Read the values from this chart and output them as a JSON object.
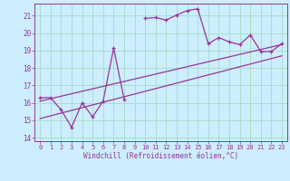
{
  "xlabel": "Windchill (Refroidissement éolien,°C)",
  "background_color": "#cceeff",
  "grid_color": "#aaddcc",
  "line_color": "#993399",
  "xlim": [
    -0.5,
    23.5
  ],
  "ylim": [
    13.8,
    21.7
  ],
  "yticks": [
    14,
    15,
    16,
    17,
    18,
    19,
    20,
    21
  ],
  "xticks": [
    0,
    1,
    2,
    3,
    4,
    5,
    6,
    7,
    8,
    9,
    10,
    11,
    12,
    13,
    14,
    15,
    16,
    17,
    18,
    19,
    20,
    21,
    22,
    23
  ],
  "series_x": [
    0,
    1,
    2,
    3,
    4,
    5,
    6,
    7,
    8,
    9,
    10,
    11,
    12,
    13,
    14,
    15,
    16,
    17,
    18,
    19,
    20,
    21,
    22,
    23
  ],
  "series_y": [
    16.3,
    16.3,
    15.6,
    14.6,
    16.0,
    15.2,
    16.1,
    19.15,
    16.2,
    null,
    20.85,
    20.9,
    20.75,
    21.05,
    21.3,
    21.4,
    19.4,
    19.75,
    19.5,
    19.35,
    19.9,
    18.95,
    18.95,
    19.4
  ],
  "line1_x": [
    0,
    23
  ],
  "line1_y": [
    16.1,
    19.35
  ],
  "line2_x": [
    0,
    23
  ],
  "line2_y": [
    15.1,
    18.7
  ]
}
